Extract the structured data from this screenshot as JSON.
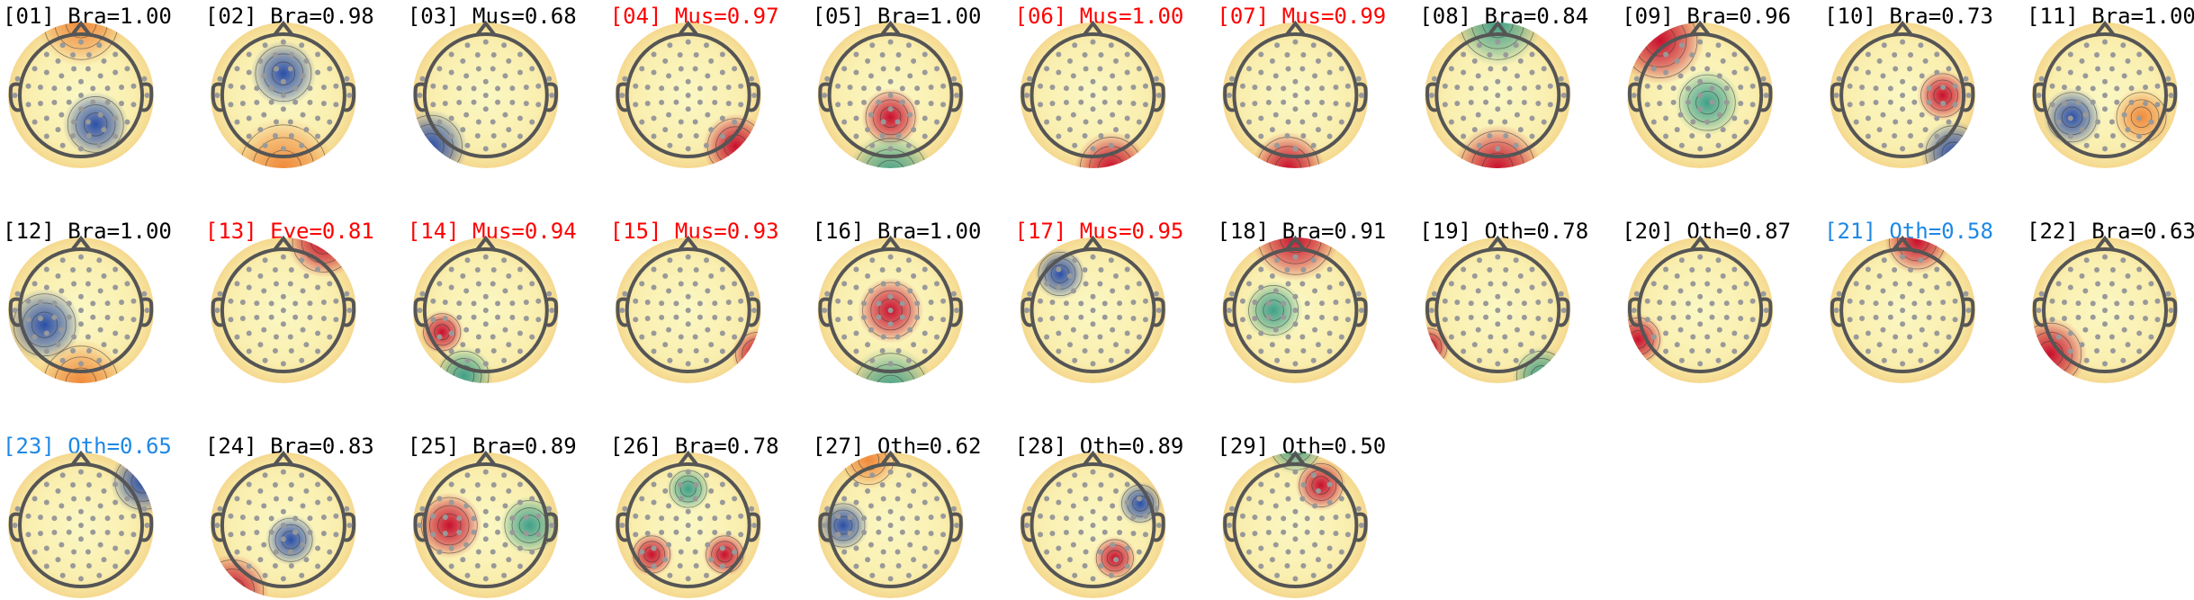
{
  "panels": [
    {
      "title": "[01] Bra=1.00",
      "color": "#000000"
    },
    {
      "title": "[02] Bra=0.98",
      "color": "#000000"
    },
    {
      "title": "[03] Mus=0.68",
      "color": "#000000"
    },
    {
      "title": "[04] Mus=0.97",
      "color": "#ff0000"
    },
    {
      "title": "[05] Bra=1.00",
      "color": "#000000"
    },
    {
      "title": "[06] Mus=1.00",
      "color": "#ff0000"
    },
    {
      "title": "[07] Mus=0.99",
      "color": "#ff0000"
    },
    {
      "title": "[08] Bra=0.84",
      "color": "#000000"
    },
    {
      "title": "[09] Bra=0.96",
      "color": "#000000"
    },
    {
      "title": "[10] Bra=0.73",
      "color": "#000000"
    },
    {
      "title": "[11] Bra=1.00",
      "color": "#000000"
    },
    {
      "title": "[12] Bra=1.00",
      "color": "#000000"
    },
    {
      "title": "[13] Eye=0.81",
      "color": "#ff0000"
    },
    {
      "title": "[14] Mus=0.94",
      "color": "#ff0000"
    },
    {
      "title": "[15] Mus=0.93",
      "color": "#ff0000"
    },
    {
      "title": "[16] Bra=1.00",
      "color": "#000000"
    },
    {
      "title": "[17] Mus=0.95",
      "color": "#ff0000"
    },
    {
      "title": "[18] Bra=0.91",
      "color": "#000000"
    },
    {
      "title": "[19] Oth=0.78",
      "color": "#000000"
    },
    {
      "title": "[20] Oth=0.87",
      "color": "#000000"
    },
    {
      "title": "[21] Oth=0.58",
      "color": "#1e88e5"
    },
    {
      "title": "[22] Bra=0.63",
      "color": "#000000"
    },
    {
      "title": "[23] Oth=0.65",
      "color": "#1e88e5"
    },
    {
      "title": "[24] Bra=0.83",
      "color": "#000000"
    },
    {
      "title": "[25] Bra=0.89",
      "color": "#000000"
    },
    {
      "title": "[26] Bra=0.78",
      "color": "#000000"
    },
    {
      "title": "[27] Oth=0.62",
      "color": "#000000"
    },
    {
      "title": "[28] Oth=0.89",
      "color": "#000000"
    },
    {
      "title": "[29] Oth=0.50",
      "color": "#000000"
    }
  ]
}
